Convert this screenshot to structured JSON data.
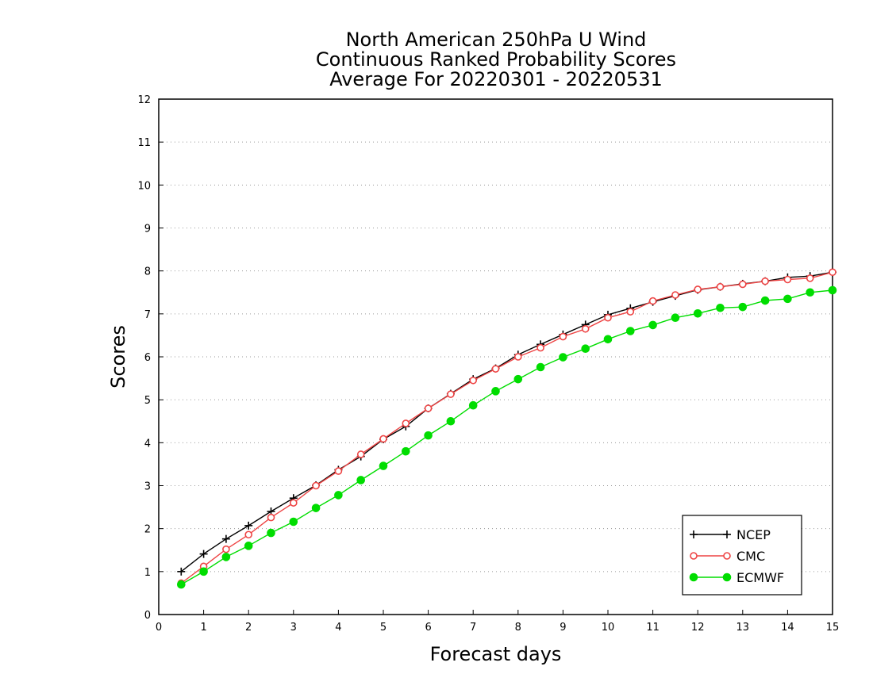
{
  "chart_data": {
    "type": "line",
    "title_lines": [
      "North American 250hPa U Wind",
      "Continuous Ranked Probability Scores",
      "Average For 20220301 - 20220531"
    ],
    "xlabel": "Forecast days",
    "ylabel": "Scores",
    "xlim": [
      0,
      15
    ],
    "ylim": [
      0,
      12
    ],
    "xticks": [
      "0",
      "1",
      "2",
      "3",
      "4",
      "5",
      "6",
      "7",
      "8",
      "9",
      "10",
      "11",
      "12",
      "13",
      "14",
      "15"
    ],
    "yticks": [
      "0",
      "1",
      "2",
      "3",
      "4",
      "5",
      "6",
      "7",
      "8",
      "9",
      "10",
      "11",
      "12"
    ],
    "grid": true,
    "legend_position": "bottom-right",
    "x": [
      0.5,
      1,
      1.5,
      2,
      2.5,
      3,
      3.5,
      4,
      4.5,
      5,
      5.5,
      6,
      6.5,
      7,
      7.5,
      8,
      8.5,
      9,
      9.5,
      10,
      10.5,
      11,
      11.5,
      12,
      12.5,
      13,
      13.5,
      14,
      14.5,
      15
    ],
    "series": [
      {
        "name": "NCEP",
        "color": "#000000",
        "marker": "plus",
        "values": [
          1.0,
          1.41,
          1.76,
          2.07,
          2.4,
          2.71,
          3.01,
          3.37,
          3.68,
          4.08,
          4.38,
          4.8,
          5.14,
          5.48,
          5.73,
          6.05,
          6.29,
          6.52,
          6.75,
          6.98,
          7.13,
          7.28,
          7.42,
          7.56,
          7.63,
          7.7,
          7.76,
          7.85,
          7.88,
          7.97
        ]
      },
      {
        "name": "CMC",
        "color": "#ee4444",
        "marker": "open-circle",
        "values": [
          0.73,
          1.12,
          1.52,
          1.86,
          2.26,
          2.6,
          3.0,
          3.34,
          3.73,
          4.09,
          4.45,
          4.8,
          5.13,
          5.45,
          5.72,
          6.0,
          6.21,
          6.47,
          6.65,
          6.91,
          7.05,
          7.3,
          7.44,
          7.57,
          7.63,
          7.69,
          7.76,
          7.8,
          7.83,
          7.97
        ]
      },
      {
        "name": "ECMWF",
        "color": "#00dd00",
        "marker": "filled-circle",
        "values": [
          0.7,
          1.0,
          1.34,
          1.6,
          1.9,
          2.16,
          2.48,
          2.78,
          3.13,
          3.46,
          3.8,
          4.17,
          4.5,
          4.87,
          5.2,
          5.48,
          5.76,
          5.99,
          6.19,
          6.41,
          6.6,
          6.74,
          6.91,
          7.01,
          7.14,
          7.16,
          7.31,
          7.35,
          7.5,
          7.55
        ]
      }
    ]
  }
}
